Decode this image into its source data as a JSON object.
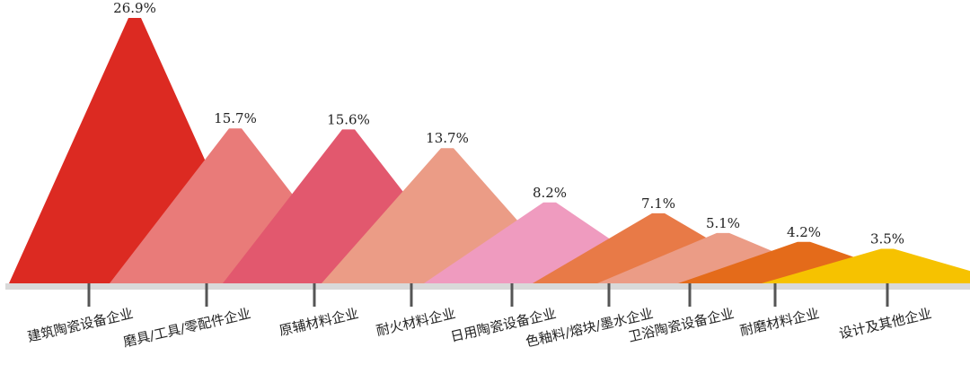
{
  "chart_data": {
    "type": "bar",
    "title": "",
    "xlabel": "",
    "ylabel": "",
    "categories": [
      "建筑陶瓷设备企业",
      "磨具/工具/零配件企业",
      "原辅材料企业",
      "耐火材料企业",
      "日用陶瓷设备企业",
      "色釉料/熔块/墨水企业",
      "卫浴陶瓷设备企业",
      "耐磨材料企业",
      "设计及其他企业"
    ],
    "values": [
      26.9,
      15.7,
      15.6,
      13.7,
      8.2,
      7.1,
      5.1,
      4.2,
      3.5
    ],
    "value_labels": [
      "26.9%",
      "15.7%",
      "15.6%",
      "13.7%",
      "8.2%",
      "7.1%",
      "5.1%",
      "4.2%",
      "3.5%"
    ],
    "ylim": [
      0,
      26.9
    ],
    "colors": [
      "#dc2a22",
      "#e97b79",
      "#e2586e",
      "#eb9c86",
      "#ef9bbf",
      "#e87a47",
      "#eb9c86",
      "#e46b1a",
      "#f6c200"
    ],
    "axis_color": "#d9d9d9",
    "tick_color": "#555555",
    "grid": false,
    "legend": "none"
  }
}
